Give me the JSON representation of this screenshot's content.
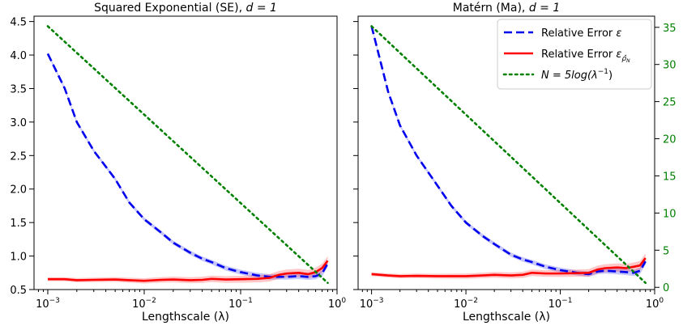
{
  "chart_data": [
    {
      "type": "line",
      "title": "Squared Exponential (SE), ",
      "title_math": "d = 1",
      "xlabel": "Lengthscale (λ)",
      "ylabel": "",
      "xscale": "log",
      "xlim": [
        0.00072,
        1.0
      ],
      "ylim": [
        0.5,
        4.58
      ],
      "xticks": [
        {
          "v": 0.001,
          "base": "10",
          "exp": "−3"
        },
        {
          "v": 0.01,
          "base": "10",
          "exp": "−2"
        },
        {
          "v": 0.1,
          "base": "10",
          "exp": "−1"
        },
        {
          "v": 1,
          "base": "10",
          "exp": "0"
        }
      ],
      "yticks": [
        "0.5",
        "1.0",
        "1.5",
        "2.0",
        "2.5",
        "3.0",
        "3.5",
        "4.0",
        "4.5"
      ],
      "grid": false,
      "series": [
        {
          "key": "eps",
          "color": "#0000ee",
          "style": "dashed",
          "x": [
            0.001,
            0.0015,
            0.002,
            0.003,
            0.005,
            0.007,
            0.01,
            0.015,
            0.02,
            0.03,
            0.04,
            0.05,
            0.07,
            0.1,
            0.15,
            0.2,
            0.25,
            0.3,
            0.4,
            0.5,
            0.6,
            0.7,
            0.8
          ],
          "y": [
            4.02,
            3.5,
            3.0,
            2.57,
            2.15,
            1.8,
            1.55,
            1.35,
            1.2,
            1.05,
            0.96,
            0.91,
            0.82,
            0.76,
            0.71,
            0.69,
            0.69,
            0.69,
            0.7,
            0.69,
            0.7,
            0.74,
            0.89
          ],
          "band": 0.05
        },
        {
          "key": "eps_rho",
          "color": "#ff0000",
          "style": "solid",
          "x": [
            0.001,
            0.0015,
            0.002,
            0.003,
            0.005,
            0.007,
            0.01,
            0.015,
            0.02,
            0.03,
            0.04,
            0.05,
            0.07,
            0.1,
            0.15,
            0.2,
            0.25,
            0.3,
            0.4,
            0.5,
            0.6,
            0.7,
            0.8
          ],
          "y": [
            0.655,
            0.655,
            0.64,
            0.645,
            0.65,
            0.64,
            0.63,
            0.645,
            0.65,
            0.64,
            0.645,
            0.66,
            0.65,
            0.655,
            0.66,
            0.675,
            0.72,
            0.74,
            0.75,
            0.73,
            0.76,
            0.82,
            0.93
          ],
          "band": 0.07
        },
        {
          "key": "N",
          "color": "#008000",
          "style": "dotted",
          "x": [
            0.001,
            0.8
          ],
          "y": [
            4.43,
            0.6
          ]
        }
      ]
    },
    {
      "type": "line",
      "title": "Matérn (Ma), ",
      "title_math": "d = 1",
      "xlabel": "Lengthscale (λ)",
      "ylabel": "",
      "xscale": "log",
      "xlim": [
        0.00072,
        1.0
      ],
      "ylim": [
        0.5,
        4.58
      ],
      "y2lim": [
        -0.3,
        36.5
      ],
      "xticks": [
        {
          "v": 0.001,
          "base": "10",
          "exp": "−3"
        },
        {
          "v": 0.01,
          "base": "10",
          "exp": "−2"
        },
        {
          "v": 0.1,
          "base": "10",
          "exp": "−1"
        },
        {
          "v": 1,
          "base": "10",
          "exp": "0"
        }
      ],
      "y2ticks": [
        "0",
        "5",
        "10",
        "15",
        "20",
        "25",
        "30",
        "35"
      ],
      "y2color": "#008000",
      "grid": false,
      "legend_position": "top-right",
      "series": [
        {
          "key": "eps",
          "color": "#0000ee",
          "style": "dashed",
          "x": [
            0.001,
            0.0015,
            0.002,
            0.003,
            0.005,
            0.007,
            0.01,
            0.015,
            0.02,
            0.03,
            0.04,
            0.05,
            0.07,
            0.1,
            0.15,
            0.2,
            0.25,
            0.3,
            0.4,
            0.5,
            0.6,
            0.7,
            0.8
          ],
          "y": [
            4.43,
            3.45,
            2.95,
            2.5,
            2.05,
            1.75,
            1.5,
            1.3,
            1.18,
            1.02,
            0.95,
            0.91,
            0.84,
            0.79,
            0.75,
            0.73,
            0.77,
            0.78,
            0.77,
            0.76,
            0.75,
            0.78,
            0.92
          ],
          "band": 0.05
        },
        {
          "key": "eps_rho",
          "color": "#ff0000",
          "style": "solid",
          "x": [
            0.001,
            0.0015,
            0.002,
            0.003,
            0.005,
            0.007,
            0.01,
            0.015,
            0.02,
            0.03,
            0.04,
            0.05,
            0.07,
            0.1,
            0.15,
            0.2,
            0.25,
            0.3,
            0.4,
            0.5,
            0.6,
            0.7,
            0.8
          ],
          "y": [
            0.73,
            0.71,
            0.7,
            0.705,
            0.7,
            0.7,
            0.7,
            0.71,
            0.72,
            0.71,
            0.72,
            0.75,
            0.74,
            0.74,
            0.745,
            0.75,
            0.8,
            0.82,
            0.83,
            0.82,
            0.84,
            0.86,
            0.97
          ],
          "band": 0.07
        },
        {
          "key": "N",
          "color": "#008000",
          "style": "dotted",
          "x": [
            0.001,
            0.8
          ],
          "y": [
            4.43,
            0.6
          ]
        }
      ]
    }
  ],
  "legend": [
    {
      "key": "eps",
      "color": "#0000ee",
      "style": "dashed",
      "label": "Relative Error ",
      "math": "ε"
    },
    {
      "key": "eps_rho",
      "color": "#ff0000",
      "style": "solid",
      "label": "Relative Error ",
      "math": "ε",
      "math_sub": "ρ̂",
      "math_subsub": "N"
    },
    {
      "key": "N",
      "color": "#008000",
      "style": "dotted",
      "label": "",
      "math": "N = 5log(λ",
      "math_sup": "−1",
      "math_tail": ")"
    }
  ]
}
